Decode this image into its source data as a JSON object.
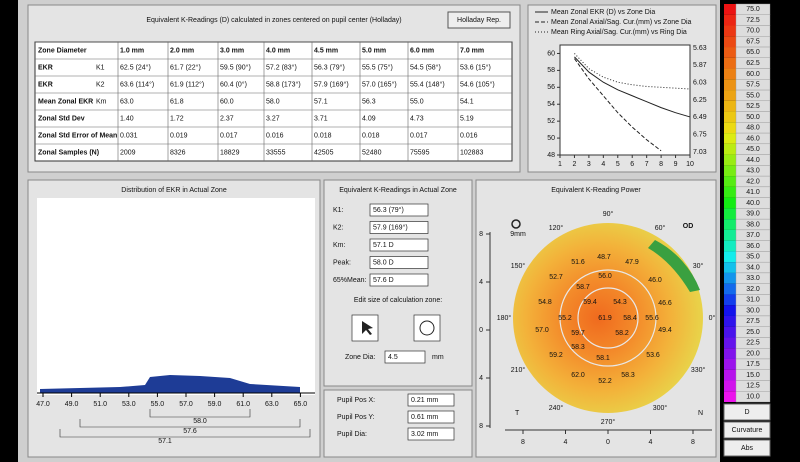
{
  "table_panel": {
    "title": "Equivalent K-Readings (D) calculated in zones centered on pupil center (Holladay)",
    "button": "Holladay Rep.",
    "header": [
      "Zone Diameter",
      "1.0 mm",
      "2.0 mm",
      "3.0 mm",
      "4.0 mm",
      "4.5 mm",
      "5.0 mm",
      "6.0 mm",
      "7.0 mm"
    ],
    "rows": [
      {
        "label": "EKR",
        "sub": "K1",
        "cells": [
          "62.5 (24°)",
          "61.7 (22°)",
          "59.5 (90°)",
          "57.2 (83°)",
          "56.3 (79°)",
          "55.5 (75°)",
          "54.5 (58°)",
          "53.6 (15°)"
        ]
      },
      {
        "label": "EKR",
        "sub": "K2",
        "cells": [
          "63.6 (114°)",
          "61.9 (112°)",
          "60.4 (0°)",
          "58.8 (173°)",
          "57.9 (169°)",
          "57.0 (165°)",
          "55.4 (148°)",
          "54.6 (105°)"
        ]
      },
      {
        "label": "Mean Zonal EKR",
        "sub": "Km",
        "cells": [
          "63.0",
          "61.8",
          "60.0",
          "58.0",
          "57.1",
          "56.3",
          "55.0",
          "54.1"
        ]
      },
      {
        "label": "Zonal Std Dev",
        "cells": [
          "1.40",
          "1.72",
          "2.37",
          "3.27",
          "3.71",
          "4.09",
          "4.73",
          "5.19"
        ]
      },
      {
        "label": "Zonal Std Error of Mean",
        "cells": [
          "0.031",
          "0.019",
          "0.017",
          "0.016",
          "0.018",
          "0.018",
          "0.017",
          "0.016"
        ]
      },
      {
        "label": "Zonal Samples (N)",
        "cells": [
          "2009",
          "8326",
          "18829",
          "33555",
          "42505",
          "52480",
          "75595",
          "102883"
        ]
      }
    ]
  },
  "line_chart": {
    "type": "line",
    "x": [
      1,
      2,
      3,
      4,
      5,
      6,
      7,
      8,
      9,
      10
    ],
    "xlim": [
      1,
      10
    ],
    "xticks": [
      1,
      2,
      3,
      4,
      5,
      6,
      7,
      8,
      9,
      10
    ],
    "ylim": [
      48,
      61
    ],
    "yticks": [
      48,
      50,
      52,
      54,
      56,
      58,
      60
    ],
    "y2ticks": [
      "5.63",
      "5.87",
      "6.03",
      "6.25",
      "6.49",
      "6.75",
      "7.03"
    ],
    "series": [
      {
        "name": "Mean Zonal EKR (D) vs Zone Dia",
        "color": "#222",
        "dash": "",
        "values": [
          null,
          59.6,
          57.8,
          56.6,
          55.7,
          55.0,
          54.3,
          53.6,
          53.0,
          52.5
        ]
      },
      {
        "name": "Mean Zonal Axial/Sag. Cur.(mm) vs Zone Dia",
        "color": "#222",
        "dash": "4 2",
        "values": [
          null,
          59.4,
          57.0,
          55.0,
          53.0,
          51.3,
          49.8,
          48.5,
          null,
          null
        ]
      },
      {
        "name": "Mean Ring Axial/Sag. Cur.(mm) vs Ring Dia",
        "color": "#222",
        "dash": "1 2",
        "values": [
          null,
          60.0,
          58.2,
          57.2,
          56.6,
          56.3,
          56.1,
          56.0,
          55.9,
          55.8
        ]
      }
    ]
  },
  "scale": {
    "values": [
      "75.0",
      "72.5",
      "70.0",
      "67.5",
      "65.0",
      "62.5",
      "60.0",
      "57.5",
      "55.0",
      "52.5",
      "50.0",
      "48.0",
      "46.0",
      "45.0",
      "44.0",
      "43.0",
      "42.0",
      "41.0",
      "40.0",
      "39.0",
      "38.0",
      "37.0",
      "36.0",
      "35.0",
      "34.0",
      "33.0",
      "32.0",
      "31.0",
      "30.0",
      "27.5",
      "25.0",
      "22.5",
      "20.0",
      "17.5",
      "15.0",
      "12.5",
      "10.0"
    ],
    "buttons": [
      "D",
      "Curvature",
      "Abs"
    ]
  },
  "histogram": {
    "title": "Distribution of EKR in Actual Zone",
    "xticks": [
      "47.0",
      "49.0",
      "51.0",
      "53.0",
      "55.0",
      "57.0",
      "59.0",
      "61.0",
      "63.0",
      "65.0"
    ],
    "markers": [
      "58.0",
      "57.6",
      "57.1"
    ]
  },
  "zone_panel": {
    "title": "Equivalent K-Readings in Actual Zone",
    "fields": [
      {
        "label": "K1:",
        "value": "56.3 (79°)"
      },
      {
        "label": "K2:",
        "value": "57.9 (169°)"
      },
      {
        "label": "Km:",
        "value": "57.1 D"
      },
      {
        "label": "Peak:",
        "value": "58.0 D"
      },
      {
        "label": "65%Mean:",
        "value": "57.6 D"
      }
    ],
    "edit_label": "Edit size of calculation zone:",
    "zone_label": "Zone Dia:",
    "zone_value": "4.5",
    "zone_unit": "mm",
    "pupil": [
      {
        "label": "Pupil Pos X:",
        "value": "0.21 mm"
      },
      {
        "label": "Pupil Pos Y:",
        "value": "0.61 mm"
      },
      {
        "label": "Pupil Dia:",
        "value": "3.02 mm"
      }
    ]
  },
  "map": {
    "title": "Equivalent K-Reading Power",
    "eye": "OD",
    "zoom_label": "9mm",
    "temporal": "T",
    "nasal": "N",
    "angles": [
      "90°",
      "60°",
      "30°",
      "0°",
      "330°",
      "300°",
      "270°",
      "240°",
      "210°",
      "180°",
      "150°",
      "120°"
    ],
    "values": [
      "48.7",
      "51.6",
      "47.9",
      "46.0",
      "52.7",
      "56.0",
      "58.7",
      "54.8",
      "59.4",
      "54.3",
      "46.6",
      "55.2",
      "61.9",
      "58.4",
      "55.6",
      "57.0",
      "59.7",
      "58.2",
      "58.3",
      "49.4",
      "59.2",
      "58.1",
      "53.6",
      "62.0",
      "58.3",
      "52.2"
    ],
    "x_ticks": [
      "8",
      "4",
      "0",
      "4",
      "8"
    ],
    "y_ticks": [
      "8",
      "4",
      "0",
      "4",
      "8"
    ]
  }
}
